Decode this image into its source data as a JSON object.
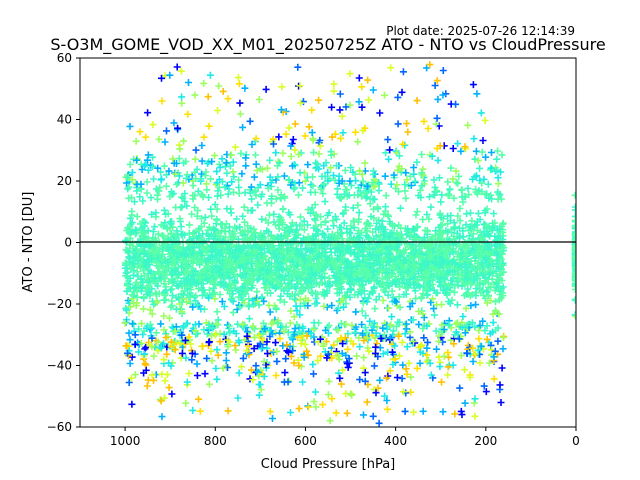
{
  "chart_data": {
    "type": "scatter",
    "title": "S-O3M_GOME_VOD_XX_M01_20250725Z ATO - NTO vs CloudPressure",
    "subtitle": "Plot date: 2025-07-26 12:14:39",
    "xlabel": "Cloud Pressure [hPa]",
    "ylabel": "ATO - NTO [DU]",
    "xlim": [
      1100,
      0
    ],
    "ylim": [
      -60,
      60
    ],
    "x_reversed": true,
    "xticks": [
      1000,
      800,
      600,
      400,
      200,
      0
    ],
    "yticks": [
      -60,
      -40,
      -20,
      0,
      20,
      40,
      60
    ],
    "ytick_labels": [
      "−60",
      "−40",
      "−20",
      "0",
      "20",
      "40",
      "60"
    ],
    "reference_line_y": 0,
    "marker": "+",
    "grid": false,
    "colormap": "jet-like",
    "palette": [
      "#0000ff",
      "#0066ff",
      "#00b0ff",
      "#1ee8e8",
      "#3cf8c8",
      "#58ffa8",
      "#9cff60",
      "#d8ff28",
      "#ffe000",
      "#ffc000"
    ],
    "distribution": {
      "core_cloud_pressure_range": [
        1000,
        160
      ],
      "core_difference_range": [
        -25,
        15
      ],
      "outer_scatter_range": [
        -60,
        60
      ],
      "edge_cluster_at_pressure": 0
    }
  }
}
